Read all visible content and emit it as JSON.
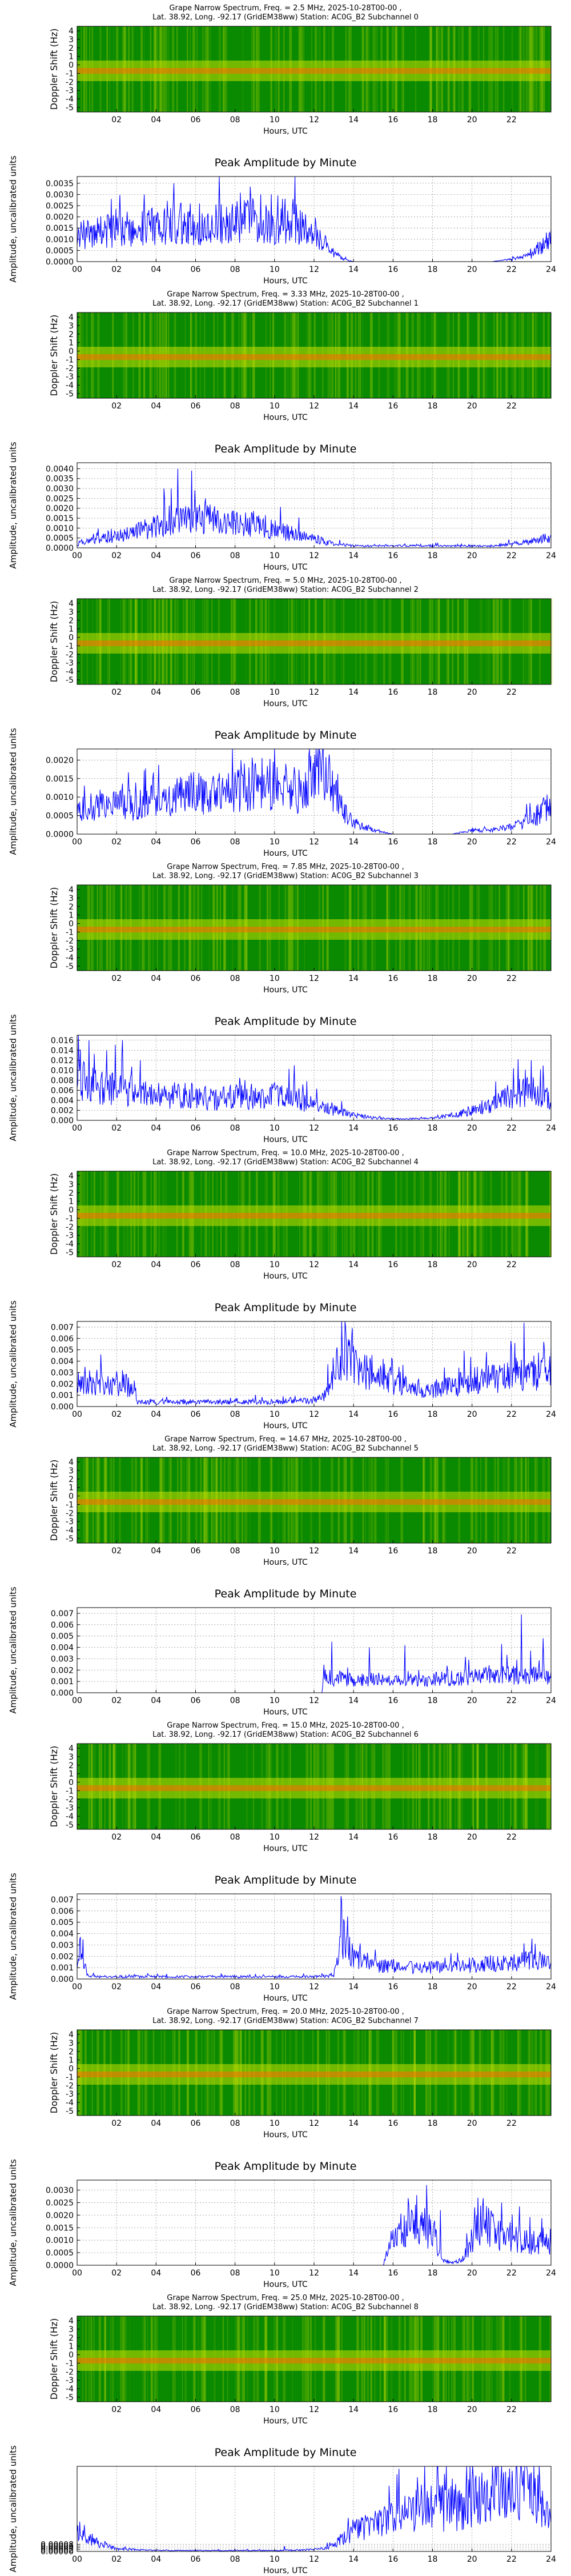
{
  "spectrogram_common": {
    "title_line2_prefix": "Lat.  38.92, Long. -92.17 (GridEM38ww) Station: AC0G_B2 Subchannel ",
    "ylabel": "Doppler Shift (Hz)",
    "xlabel": "Hours, UTC",
    "yticks": [
      "4",
      "3",
      "2",
      "1",
      "0",
      "-1",
      "-2",
      "-3",
      "-4",
      "-5"
    ],
    "xticks": [
      "02",
      "04",
      "06",
      "08",
      "10",
      "12",
      "14",
      "16",
      "18",
      "20",
      "22"
    ]
  },
  "amplitude_common": {
    "title": "Peak Amplitude by Minute",
    "ylabel": "Amplitude, uncalibrated units",
    "xlabel": "Hours, UTC",
    "xticks": [
      "00",
      "02",
      "04",
      "06",
      "08",
      "10",
      "12",
      "14",
      "16",
      "18",
      "20",
      "22",
      "24"
    ]
  },
  "colors": {
    "line": "#0000ff",
    "spec_low": "#0a8a00",
    "spec_mid": "#c8e000",
    "spec_high": "#ff6a00"
  },
  "chart_data": [
    {
      "type": "heatmap",
      "title": "Grape Narrow Spectrum, Freq. = 2.5 MHz, 2025-10-28T00-00 ,",
      "subchannel": "0",
      "xlim": [
        0,
        24
      ],
      "ylim": [
        -5,
        5
      ]
    },
    {
      "type": "line",
      "ylim": [
        0,
        0.0038
      ],
      "yticks": [
        "0.0000",
        "0.0005",
        "0.0010",
        "0.0015",
        "0.0020",
        "0.0025",
        "0.0030",
        "0.0035"
      ],
      "x": [
        0,
        1,
        2,
        3,
        4,
        5,
        6,
        7,
        8,
        9,
        10,
        11,
        12,
        12.5,
        13,
        13.5,
        14,
        15,
        16,
        17,
        18,
        19,
        20,
        21,
        22,
        23,
        23.5,
        24
      ],
      "y": [
        0.0012,
        0.0013,
        0.0014,
        0.0015,
        0.0016,
        0.0017,
        0.0014,
        0.0016,
        0.0018,
        0.0019,
        0.0017,
        0.0016,
        0.0014,
        0.0009,
        0.0004,
        0.0001,
        0.0,
        0.0,
        0.0,
        0.0,
        0.0,
        0.0,
        0.0,
        0.0,
        0.0001,
        0.0003,
        0.0007,
        0.0011
      ],
      "spikes": [
        [
          4.9,
          0.0035
        ],
        [
          3.4,
          0.003
        ],
        [
          9.3,
          0.003
        ],
        [
          10.4,
          0.0028
        ],
        [
          8.1,
          0.0027
        ],
        [
          6.2,
          0.0026
        ]
      ]
    },
    {
      "type": "heatmap",
      "title": "Grape Narrow Spectrum, Freq. = 3.33 MHz, 2025-10-28T00-00 ,",
      "subchannel": "1",
      "xlim": [
        0,
        24
      ],
      "ylim": [
        -5,
        5
      ]
    },
    {
      "type": "line",
      "ylim": [
        0,
        0.0043
      ],
      "yticks": [
        "0.0000",
        "0.0005",
        "0.0010",
        "0.0015",
        "0.0020",
        "0.0025",
        "0.0030",
        "0.0035",
        "0.0040"
      ],
      "x": [
        0,
        1,
        2,
        3,
        4,
        5,
        6,
        7,
        8,
        9,
        10,
        11,
        12,
        12.5,
        13,
        14,
        15,
        16,
        17,
        18,
        19,
        20,
        21,
        22,
        23,
        23.5,
        24
      ],
      "y": [
        0.0002,
        0.0004,
        0.0006,
        0.0008,
        0.0011,
        0.0013,
        0.0015,
        0.0014,
        0.0013,
        0.0012,
        0.0009,
        0.0007,
        0.0005,
        0.0003,
        0.0002,
        0.0001,
        0.0001,
        0.0001,
        0.0001,
        0.0001,
        0.0001,
        0.0001,
        0.0001,
        0.0002,
        0.0003,
        0.0005,
        0.0004
      ],
      "spikes": [
        [
          5.1,
          0.004
        ],
        [
          5.8,
          0.0039
        ],
        [
          4.4,
          0.003
        ],
        [
          6.5,
          0.0025
        ]
      ]
    },
    {
      "type": "heatmap",
      "title": "Grape Narrow Spectrum, Freq. = 5.0 MHz, 2025-10-28T00-00 ,",
      "subchannel": "2",
      "xlim": [
        0,
        24
      ],
      "ylim": [
        -5,
        5
      ]
    },
    {
      "type": "line",
      "ylim": [
        0,
        0.0023
      ],
      "yticks": [
        "0.0000",
        "0.0005",
        "0.0010",
        "0.0015",
        "0.0020"
      ],
      "x": [
        0,
        1,
        2,
        3,
        4,
        5,
        6,
        7,
        8,
        9,
        10,
        11,
        11.5,
        12,
        12.5,
        13,
        13.5,
        14,
        15,
        16,
        17,
        18,
        19,
        20,
        21,
        22,
        23,
        24
      ],
      "y": [
        0.0006,
        0.0007,
        0.0008,
        0.0008,
        0.0009,
        0.001,
        0.0011,
        0.0012,
        0.0013,
        0.0014,
        0.0013,
        0.0012,
        0.0011,
        0.0019,
        0.002,
        0.0012,
        0.0006,
        0.0003,
        0.0001,
        0.0,
        0.0,
        0.0,
        0.0,
        0.0001,
        0.0001,
        0.0002,
        0.0004,
        0.0008
      ],
      "spikes": [
        [
          12.3,
          0.0022
        ],
        [
          12.8,
          0.0019
        ],
        [
          9.2,
          0.0016
        ],
        [
          10.6,
          0.0017
        ]
      ]
    },
    {
      "type": "heatmap",
      "title": "Grape Narrow Spectrum, Freq. = 7.85 MHz, 2025-10-28T00-00 ,",
      "subchannel": "3",
      "xlim": [
        0,
        24
      ],
      "ylim": [
        -5,
        5
      ]
    },
    {
      "type": "line",
      "ylim": [
        0,
        0.017
      ],
      "yticks": [
        "0.000",
        "0.002",
        "0.004",
        "0.006",
        "0.008",
        "0.010",
        "0.012",
        "0.014",
        "0.016"
      ],
      "x": [
        0,
        1,
        2,
        3,
        4,
        5,
        6,
        7,
        8,
        9,
        10,
        11,
        12,
        13,
        14,
        15,
        16,
        17,
        18,
        19,
        20,
        21,
        22,
        23,
        24
      ],
      "y": [
        0.008,
        0.007,
        0.006,
        0.006,
        0.005,
        0.005,
        0.005,
        0.004,
        0.005,
        0.004,
        0.005,
        0.004,
        0.003,
        0.002,
        0.001,
        0.0005,
        0.0003,
        0.0003,
        0.0004,
        0.001,
        0.002,
        0.003,
        0.005,
        0.006,
        0.004
      ],
      "spikes": [
        [
          0.6,
          0.016
        ],
        [
          2.3,
          0.016
        ],
        [
          1.5,
          0.014
        ],
        [
          3.2,
          0.012
        ],
        [
          11.0,
          0.011
        ],
        [
          23.0,
          0.012
        ]
      ]
    },
    {
      "type": "heatmap",
      "title": "Grape Narrow Spectrum, Freq. = 10.0 MHz, 2025-10-28T00-00 ,",
      "subchannel": "4",
      "xlim": [
        0,
        24
      ],
      "ylim": [
        -5,
        5
      ]
    },
    {
      "type": "line",
      "ylim": [
        0,
        0.0075
      ],
      "yticks": [
        "0.000",
        "0.001",
        "0.002",
        "0.003",
        "0.004",
        "0.005",
        "0.006",
        "0.007"
      ],
      "x": [
        0,
        1,
        2,
        2.9,
        3,
        4,
        5,
        6,
        7,
        8,
        9,
        10,
        11,
        12,
        12.5,
        13,
        13.5,
        14,
        15,
        16,
        17,
        18,
        19,
        20,
        21,
        22,
        23,
        24
      ],
      "y": [
        0.002,
        0.0021,
        0.0019,
        0.0018,
        0.0004,
        0.0004,
        0.0004,
        0.0004,
        0.0004,
        0.0004,
        0.0004,
        0.0004,
        0.0005,
        0.0005,
        0.0008,
        0.003,
        0.0055,
        0.0035,
        0.0028,
        0.0022,
        0.0016,
        0.0015,
        0.0018,
        0.0022,
        0.0025,
        0.0028,
        0.003,
        0.0033
      ],
      "spikes": [
        [
          13.6,
          0.007
        ],
        [
          13.9,
          0.006
        ],
        [
          0.4,
          0.0035
        ],
        [
          24.0,
          0.0052
        ]
      ]
    },
    {
      "type": "heatmap",
      "title": "Grape Narrow Spectrum, Freq. = 14.67 MHz, 2025-10-28T00-00 ,",
      "subchannel": "5",
      "xlim": [
        0,
        24
      ],
      "ylim": [
        -5,
        5
      ]
    },
    {
      "type": "line",
      "ylim": [
        0,
        0.0075
      ],
      "yticks": [
        "0.000",
        "0.001",
        "0.002",
        "0.003",
        "0.004",
        "0.005",
        "0.006",
        "0.007"
      ],
      "x": [
        0,
        2,
        4,
        6,
        8,
        10,
        12,
        12.4,
        12.5,
        13,
        14,
        15,
        16,
        17,
        18,
        19,
        20,
        21,
        22,
        23,
        24
      ],
      "y": [
        0.0,
        0.0,
        0.0,
        0.0,
        0.0,
        0.0,
        0.0,
        0.0,
        0.0015,
        0.0013,
        0.0011,
        0.0012,
        0.001,
        0.0011,
        0.0012,
        0.0013,
        0.0014,
        0.0015,
        0.0016,
        0.0015,
        0.0014
      ],
      "spikes": [
        [
          22.5,
          0.0069
        ],
        [
          12.9,
          0.0045
        ],
        [
          14.8,
          0.004
        ],
        [
          16.6,
          0.0042
        ],
        [
          21.5,
          0.0043
        ],
        [
          23.6,
          0.0048
        ]
      ]
    },
    {
      "type": "heatmap",
      "title": "Grape Narrow Spectrum, Freq. = 15.0 MHz, 2025-10-28T00-00 ,",
      "subchannel": "6",
      "xlim": [
        0,
        24
      ],
      "ylim": [
        -5,
        5
      ]
    },
    {
      "type": "line",
      "ylim": [
        0,
        0.0075
      ],
      "yticks": [
        "0.000",
        "0.001",
        "0.002",
        "0.003",
        "0.004",
        "0.005",
        "0.006",
        "0.007"
      ],
      "x": [
        0,
        0.2,
        0.5,
        1,
        2,
        4,
        6,
        8,
        10,
        12,
        13,
        13.2,
        13.5,
        14,
        15,
        16,
        17,
        18,
        19,
        20,
        21,
        22,
        23,
        24
      ],
      "y": [
        0.001,
        0.003,
        0.0003,
        0.0002,
        0.0002,
        0.0002,
        0.0002,
        0.0002,
        0.0002,
        0.0002,
        0.0003,
        0.002,
        0.004,
        0.0018,
        0.0013,
        0.0011,
        0.001,
        0.001,
        0.0011,
        0.0012,
        0.0013,
        0.0015,
        0.0016,
        0.0017
      ],
      "spikes": [
        [
          13.4,
          0.0068
        ],
        [
          13.7,
          0.0055
        ],
        [
          23.2,
          0.0031
        ],
        [
          0.3,
          0.0035
        ]
      ]
    },
    {
      "type": "heatmap",
      "title": "Grape Narrow Spectrum, Freq. = 20.0 MHz, 2025-10-28T00-00 ,",
      "subchannel": "7",
      "xlim": [
        0,
        24
      ],
      "ylim": [
        -5,
        5
      ]
    },
    {
      "type": "line",
      "ylim": [
        0,
        0.0034
      ],
      "yticks": [
        "0.0000",
        "0.0005",
        "0.0010",
        "0.0015",
        "0.0020",
        "0.0025",
        "0.0030"
      ],
      "x": [
        0,
        2,
        4,
        6,
        8,
        10,
        12,
        14,
        15.5,
        16,
        16.5,
        17,
        17.5,
        18,
        18.5,
        19,
        19.5,
        20,
        20.5,
        21,
        21.5,
        22,
        23,
        24
      ],
      "y": [
        0.0,
        0.0,
        0.0,
        0.0,
        0.0,
        0.0,
        0.0,
        0.0,
        0.0,
        0.0012,
        0.0014,
        0.0016,
        0.0015,
        0.0014,
        0.0002,
        0.0001,
        0.0002,
        0.001,
        0.0018,
        0.0015,
        0.0012,
        0.0011,
        0.0009,
        0.0008
      ],
      "spikes": [
        [
          17.7,
          0.0032
        ],
        [
          17.2,
          0.0028
        ],
        [
          16.8,
          0.0024
        ],
        [
          20.3,
          0.0027
        ],
        [
          21.5,
          0.0025
        ],
        [
          18.4,
          0.0022
        ]
      ]
    },
    {
      "type": "heatmap",
      "title": "Grape Narrow Spectrum, Freq. = 25.0 MHz, 2025-10-28T00-00 ,",
      "subchannel": "8",
      "xlim": [
        0,
        24
      ],
      "ylim": [
        -5,
        5
      ]
    },
    {
      "type": "line",
      "ylim": [
        0,
        0.00095
      ],
      "yticks": [
        "0.00000",
        "0.00002",
        "0.00004",
        "0.00006",
        "0.00008"
      ],
      "x": [
        0,
        0.5,
        1,
        2,
        4,
        6,
        8,
        10,
        12,
        13,
        13.5,
        14,
        15,
        16,
        17,
        18,
        19,
        20,
        21,
        22,
        23,
        23.5,
        24
      ],
      "y": [
        0.0002,
        0.00014,
        0.0001,
        3e-05,
        1e-05,
        1e-05,
        1e-05,
        1e-05,
        2e-05,
        6e-05,
        0.00016,
        0.00022,
        0.0003,
        0.00038,
        0.00045,
        0.00048,
        0.00048,
        0.00055,
        0.00062,
        0.00068,
        0.0007,
        0.00055,
        0.0003
      ],
      "spikes": [
        [
          22.6,
          0.0009
        ],
        [
          23.0,
          0.00088
        ],
        [
          18.0,
          0.0005
        ],
        [
          16.6,
          0.00062
        ],
        [
          10.5,
          6e-05
        ]
      ]
    }
  ]
}
